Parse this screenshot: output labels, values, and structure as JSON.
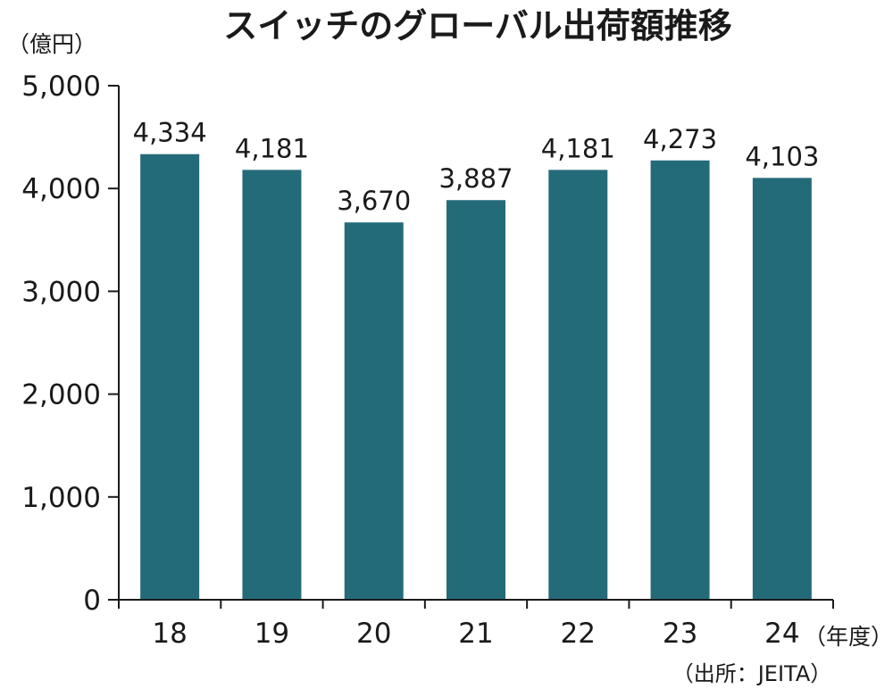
{
  "chart_data": {
    "type": "bar",
    "title": "スイッチのグローバル出荷額推移",
    "ylabel": "（億円）",
    "xlabel": "（年度）",
    "source": "（出所：JEITA）",
    "categories": [
      "18",
      "19",
      "20",
      "21",
      "22",
      "23",
      "24"
    ],
    "values": [
      4334,
      4181,
      3670,
      3887,
      4181,
      4273,
      4103
    ],
    "value_labels": [
      "4,334",
      "4,181",
      "3,670",
      "3,887",
      "4,181",
      "4,273",
      "4,103"
    ],
    "ylim": [
      0,
      5000
    ],
    "yticks": [
      0,
      1000,
      2000,
      3000,
      4000,
      5000
    ],
    "ytick_labels": [
      "0",
      "1,000",
      "2,000",
      "3,000",
      "4,000",
      "5,000"
    ],
    "grid": false,
    "legend": "none",
    "bar_color": "#246b7a"
  }
}
